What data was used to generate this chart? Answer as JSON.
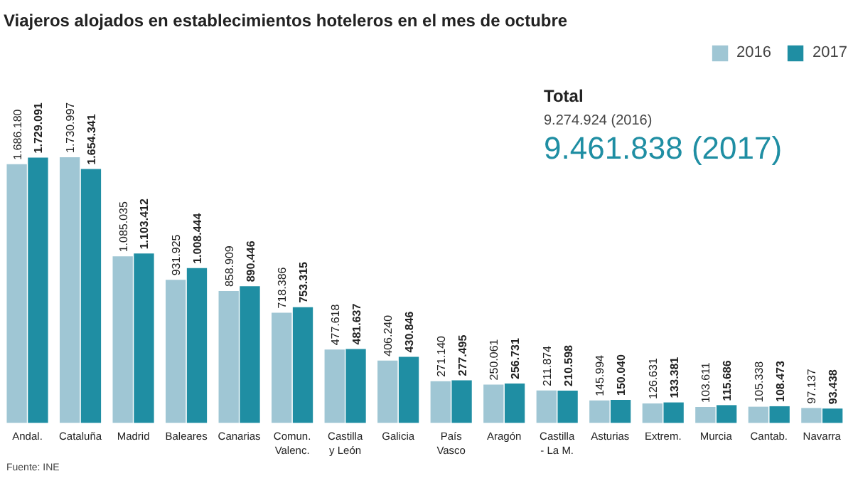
{
  "chart_data": {
    "type": "bar",
    "title": "Viajeros alojados en establecimientos hoteleros en el mes de octubre",
    "categories": [
      "Andal.",
      "Cataluña",
      "Madrid",
      "Baleares",
      "Canarias",
      "Comun.\nValenc.",
      "Castilla\ny León",
      "Galicia",
      "País\nVasco",
      "Aragón",
      "Castilla\n- La M.",
      "Asturias",
      "Extrem.",
      "Murcia",
      "Cantab.",
      "Navarra"
    ],
    "series": [
      {
        "name": "2016",
        "color": "#9fc6d4",
        "values": [
          1686180,
          1730997,
          1085035,
          931925,
          858909,
          718386,
          477618,
          406240,
          271140,
          250061,
          211874,
          145994,
          126631,
          103611,
          105338,
          97137
        ],
        "value_labels": [
          "1.686.180",
          "1.730.997",
          "1.085.035",
          "931.925",
          "858.909",
          "718.386",
          "477.618",
          "406.240",
          "271.140",
          "250.061",
          "211.874",
          "145.994",
          "126.631",
          "103.611",
          "105.338",
          "97.137"
        ]
      },
      {
        "name": "2017",
        "color": "#1f8ea3",
        "values": [
          1729091,
          1654341,
          1103412,
          1008444,
          890446,
          753315,
          481637,
          430846,
          277495,
          256731,
          210598,
          150040,
          133381,
          115686,
          108473,
          93438
        ],
        "value_labels": [
          "1.729.091",
          "1.654.341",
          "1.103.412",
          "1.008.444",
          "890.446",
          "753.315",
          "481.637",
          "430.846",
          "277.495",
          "256.731",
          "210.598",
          "150.040",
          "133.381",
          "115.686",
          "108.473",
          "93.438"
        ]
      }
    ],
    "annotations": [
      "Total",
      "9.274.924 (2016)",
      "9.461.838 (2017)",
      "Fuente: INE"
    ],
    "legend": "top right",
    "grid": false
  }
}
